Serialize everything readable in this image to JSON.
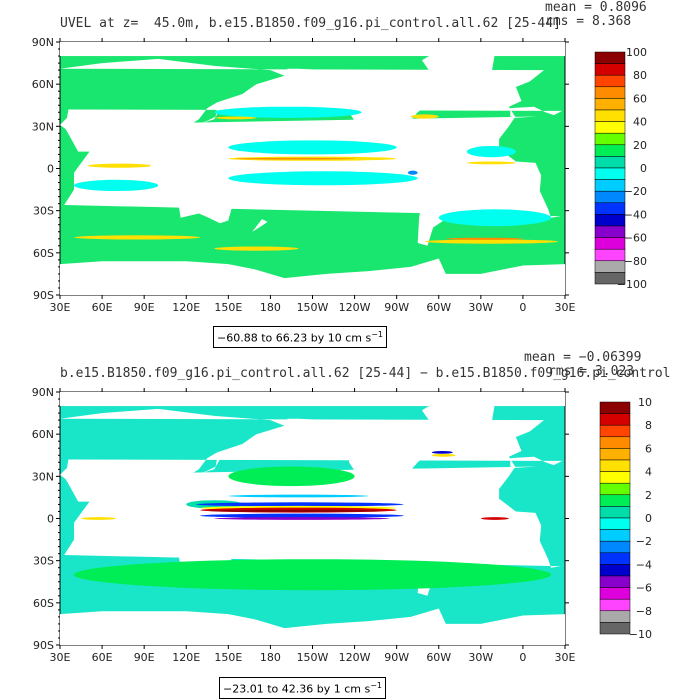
{
  "chart_data": [
    {
      "type": "heatmap",
      "title": "UVEL at z=  45.0m, b.e15.B1850.f09_g16.pi_control.all.62 [25-44]",
      "mean_text": "mean = 0.8096",
      "rms_text": "rms = 8.368",
      "range_text": "−60.88 to 66.23 by 10 cm s",
      "range_exp": "−1",
      "y_ticks": [
        "90N",
        "60N",
        "30N",
        "0",
        "30S",
        "60S",
        "90S"
      ],
      "x_ticks": [
        "30E",
        "60E",
        "90E",
        "120E",
        "150E",
        "180",
        "150W",
        "120W",
        "90W",
        "60W",
        "30W",
        "0",
        "30E"
      ],
      "colorbar_labels": [
        "100",
        "80",
        "60",
        "40",
        "20",
        "0",
        "−20",
        "−40",
        "−60",
        "−80",
        "−100"
      ],
      "colorbar_colors": [
        "#8b0000",
        "#d40000",
        "#ff4500",
        "#ff8c00",
        "#ffb000",
        "#ffe000",
        "#ffff00",
        "#66ff00",
        "#00ee55",
        "#00ddaa",
        "#00ffee",
        "#00ccff",
        "#0088ff",
        "#0033ff",
        "#0000cc",
        "#8800cc",
        "#dd00dd",
        "#ff44ff",
        "#aaaaaa",
        "#666666"
      ],
      "ocean_color": "#19e66e"
    },
    {
      "type": "heatmap",
      "title": "b.e15.B1850.f09_g16.pi_control.all.62 [25-44] − b.e15.B1850.f09_g16.pi_control",
      "mean_text": "mean = −0.06399",
      "rms_text": "rms = 3.023",
      "range_text": "−23.01 to 42.36 by 1 cm s",
      "range_exp": "−1",
      "y_ticks": [
        "90N",
        "60N",
        "30N",
        "0",
        "30S",
        "60S",
        "90S"
      ],
      "x_ticks": [
        "30E",
        "60E",
        "90E",
        "120E",
        "150E",
        "180",
        "150W",
        "120W",
        "90W",
        "60W",
        "30W",
        "0",
        "30E"
      ],
      "colorbar_labels": [
        "10",
        "8",
        "6",
        "4",
        "2",
        "0",
        "−2",
        "−4",
        "−6",
        "−8",
        "−10"
      ],
      "colorbar_colors": [
        "#8b0000",
        "#d40000",
        "#ff4500",
        "#ff8c00",
        "#ffb000",
        "#ffe000",
        "#ffff00",
        "#66ff00",
        "#00ee55",
        "#00ddaa",
        "#00ffee",
        "#00ccff",
        "#0088ff",
        "#0033ff",
        "#0000cc",
        "#8800cc",
        "#dd00dd",
        "#ff44ff",
        "#aaaaaa",
        "#666666"
      ],
      "ocean_color": "#19e6c8"
    }
  ]
}
